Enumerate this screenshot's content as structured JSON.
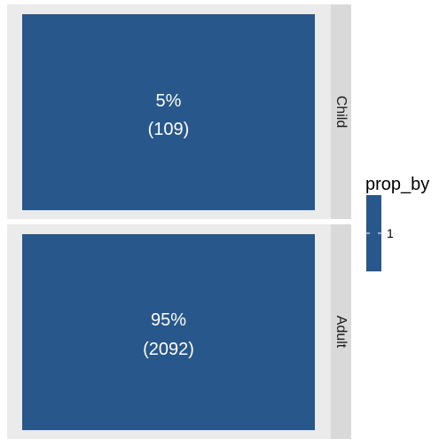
{
  "chart_data": {
    "type": "heatmap",
    "title": "",
    "xlabel": "",
    "ylabel": "",
    "facets": [
      {
        "strip_label": "Child",
        "percent_label": "5%",
        "count_label": "(109)",
        "prop_by": 1
      },
      {
        "strip_label": "Adult",
        "percent_label": "95%",
        "count_label": "(2092)",
        "prop_by": 1
      }
    ],
    "legend": {
      "title": "prop_by",
      "breaks": [
        "1"
      ],
      "placement": "right"
    },
    "colors": {
      "tile_fill": "#27578b",
      "panel_background": "#ebebeb",
      "strip_background": "#d9d9d9",
      "legend_fill": "#27578b",
      "text_on_tile": "#ffffff"
    },
    "grid": false
  }
}
